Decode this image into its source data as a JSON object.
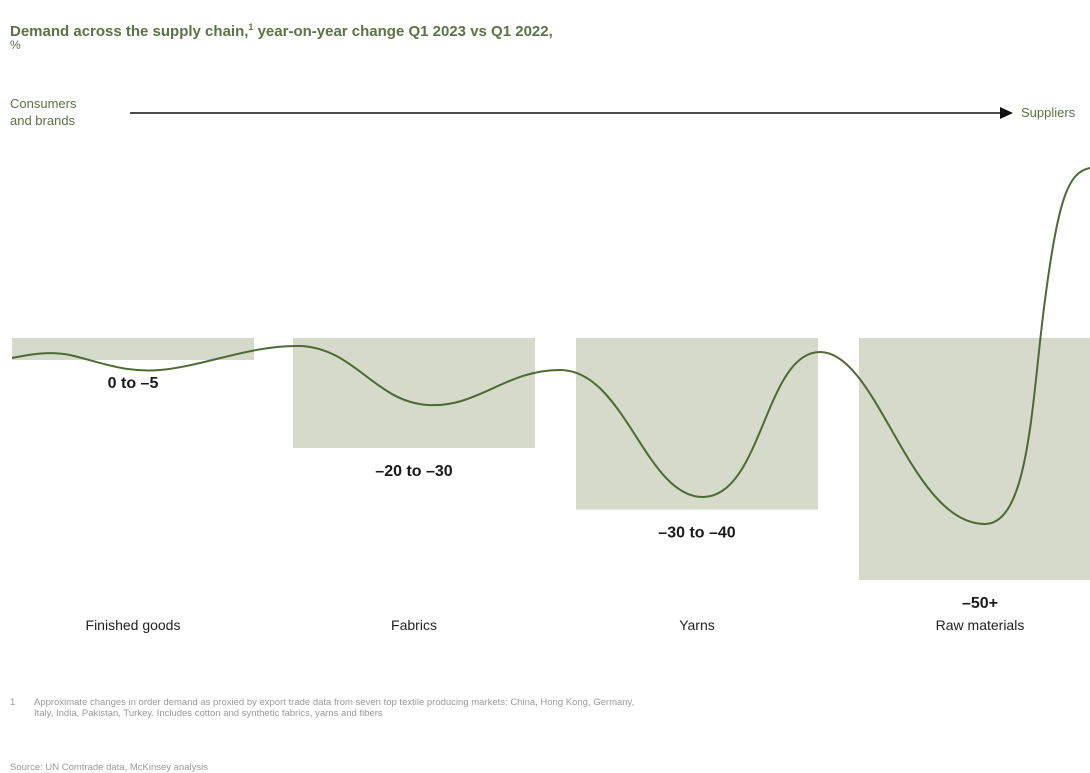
{
  "title": "Demand across the supply chain,",
  "title_footnote_marker": "1",
  "title_rest": " year-on-year change Q1 2023 vs Q1 2022,",
  "unit": "%",
  "flow": {
    "start_label_line1": "Consumers",
    "start_label_line2": "and brands",
    "end_label": "Suppliers"
  },
  "chart_data": {
    "type": "bar",
    "categories": [
      "Finished goods",
      "Fabrics",
      "Yarns",
      "Raw materials"
    ],
    "value_labels": [
      "0 to –5",
      "–20 to –30",
      "–30 to –40",
      "–50+"
    ],
    "ranges": [
      [
        0,
        -5
      ],
      [
        -20,
        -30
      ],
      [
        -30,
        -40
      ],
      [
        -50,
        -55
      ]
    ],
    "values": [
      -5,
      -25,
      -39,
      -55
    ],
    "ylim": [
      -60,
      40
    ],
    "line": "decorative demand curve oscillating across the stages",
    "grid": false,
    "legend": "none",
    "colors": {
      "bar": "#d6dacb",
      "line": "#4e6a33",
      "arrow": "#111111",
      "title": "#5b7443"
    }
  },
  "footnote": {
    "number": "1",
    "text": "Approximate changes in order demand as proxied by export trade data from seven top textile producing markets: China, Hong Kong, Germany, Italy, India, Pakistan, Turkey. Includes cotton and synthetic fabrics, yarns and fibers"
  },
  "source": "Source: UN Comtrade data, McKinsey analysis"
}
